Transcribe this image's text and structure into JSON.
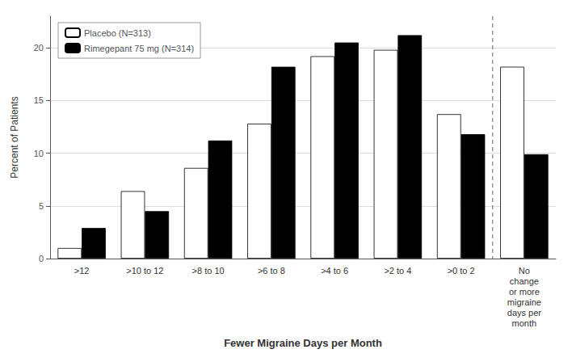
{
  "chart_data": {
    "type": "bar",
    "categories": [
      ">12",
      ">10 to 12",
      ">8 to 10",
      ">6 to 8",
      ">4 to 6",
      ">2 to 4",
      ">0 to 2",
      "No\nchange\nor more\nmigraine\ndays per\nmonth"
    ],
    "series": [
      {
        "name": "Placebo (N=313)",
        "color": "#ffffff",
        "values": [
          1.0,
          6.4,
          8.6,
          12.8,
          19.2,
          19.8,
          13.7,
          18.2
        ]
      },
      {
        "name": "Rimegepant 75 mg (N=314)",
        "color": "#000000",
        "values": [
          2.9,
          4.5,
          11.2,
          18.2,
          20.5,
          21.2,
          11.8,
          9.9
        ]
      }
    ],
    "xlabel": "Fewer Migraine Days per Month",
    "ylabel": "Percent of Patients",
    "ylim": [
      0,
      23
    ],
    "yticks": [
      0,
      5,
      10,
      15,
      20
    ],
    "grid": true,
    "legend": "upper left"
  }
}
